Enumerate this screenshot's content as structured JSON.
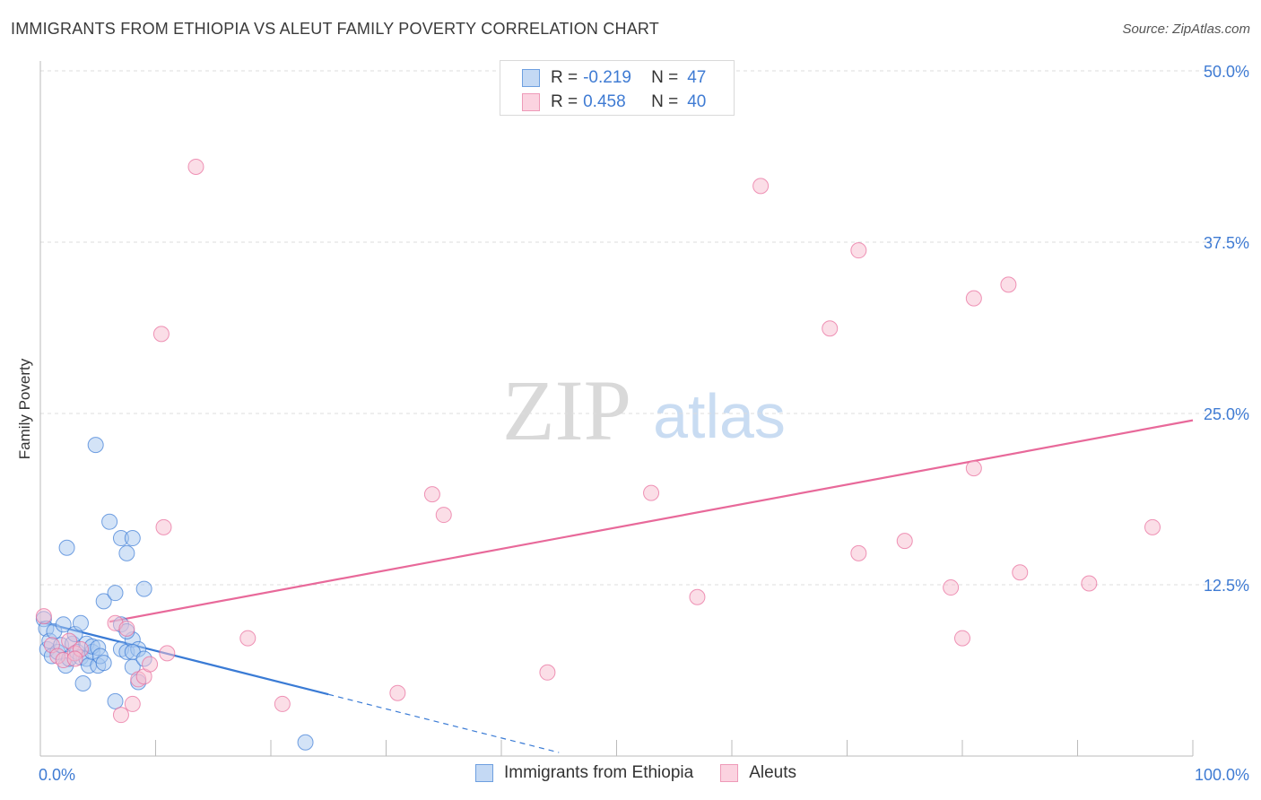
{
  "title": "IMMIGRANTS FROM ETHIOPIA VS ALEUT FAMILY POVERTY CORRELATION CHART",
  "source": "Source: ZipAtlas.com",
  "watermark": {
    "zip": "ZIP",
    "atlas": "atlas"
  },
  "colors": {
    "blue_fill": "#a8c8f0",
    "blue_stroke": "#3a7bd5",
    "pink_fill": "#f7bdd0",
    "pink_stroke": "#e8699a",
    "tick_text": "#3f7bd3",
    "grid": "#dddddd"
  },
  "legend": {
    "r_label": "R =",
    "n_label": "N =",
    "series1": {
      "r": "-0.219",
      "n": "47"
    },
    "series2": {
      "r": "0.458",
      "n": "40"
    }
  },
  "chart_data": {
    "type": "scatter",
    "title": "IMMIGRANTS FROM ETHIOPIA VS ALEUT FAMILY POVERTY CORRELATION CHART",
    "xlabel": "",
    "ylabel": "Family Poverty",
    "xlim": [
      0,
      100
    ],
    "ylim": [
      0,
      50
    ],
    "x_tick_labels": [
      {
        "value": 0,
        "label": "0.0%"
      },
      {
        "value": 100,
        "label": "100.0%"
      }
    ],
    "y_tick_labels": [
      {
        "value": 12.5,
        "label": "12.5%"
      },
      {
        "value": 25.0,
        "label": "25.0%"
      },
      {
        "value": 37.5,
        "label": "37.5%"
      },
      {
        "value": 50.0,
        "label": "50.0%"
      }
    ],
    "series": [
      {
        "name": "Immigrants from Ethiopia",
        "r": -0.219,
        "n": 47,
        "trend": {
          "x0": 0,
          "y0": 9.8,
          "x1": 25,
          "y1": 4.5,
          "dash_to_x": 45
        },
        "points": [
          [
            0.3,
            10.0
          ],
          [
            0.5,
            9.3
          ],
          [
            0.6,
            7.8
          ],
          [
            0.8,
            8.4
          ],
          [
            1.0,
            7.3
          ],
          [
            1.2,
            9.1
          ],
          [
            1.5,
            7.6
          ],
          [
            1.8,
            8.1
          ],
          [
            2.0,
            9.6
          ],
          [
            2.2,
            6.6
          ],
          [
            2.5,
            7.1
          ],
          [
            2.8,
            8.2
          ],
          [
            3.0,
            8.9
          ],
          [
            3.2,
            7.6
          ],
          [
            3.5,
            9.7
          ],
          [
            3.5,
            7.2
          ],
          [
            3.7,
            5.3
          ],
          [
            4.0,
            7.1
          ],
          [
            4.0,
            8.2
          ],
          [
            4.2,
            6.6
          ],
          [
            4.5,
            7.6
          ],
          [
            4.5,
            8.0
          ],
          [
            5.0,
            6.6
          ],
          [
            5.0,
            7.9
          ],
          [
            5.2,
            7.3
          ],
          [
            5.5,
            6.8
          ],
          [
            4.8,
            22.7
          ],
          [
            6.0,
            17.1
          ],
          [
            7.0,
            15.9
          ],
          [
            8.0,
            15.9
          ],
          [
            2.3,
            15.2
          ],
          [
            7.5,
            14.8
          ],
          [
            5.5,
            11.3
          ],
          [
            6.5,
            11.9
          ],
          [
            9.0,
            12.2
          ],
          [
            7.0,
            7.8
          ],
          [
            7.5,
            7.6
          ],
          [
            7.0,
            9.6
          ],
          [
            8.0,
            8.5
          ],
          [
            7.5,
            9.1
          ],
          [
            8.5,
            7.8
          ],
          [
            8.0,
            7.6
          ],
          [
            8.0,
            6.5
          ],
          [
            9.0,
            7.1
          ],
          [
            8.5,
            5.4
          ],
          [
            6.5,
            4.0
          ],
          [
            23.0,
            1.0
          ]
        ]
      },
      {
        "name": "Aleuts",
        "r": 0.458,
        "n": 40,
        "trend": {
          "x0": 6,
          "y0": 9.8,
          "x1": 100,
          "y1": 24.5
        },
        "points": [
          [
            0.3,
            10.2
          ],
          [
            1.0,
            8.1
          ],
          [
            1.5,
            7.3
          ],
          [
            2.0,
            7.0
          ],
          [
            2.5,
            8.4
          ],
          [
            3.0,
            7.5
          ],
          [
            3.5,
            7.8
          ],
          [
            6.5,
            9.7
          ],
          [
            7.0,
            3.0
          ],
          [
            7.5,
            9.3
          ],
          [
            8.0,
            3.8
          ],
          [
            8.5,
            5.6
          ],
          [
            9.0,
            5.8
          ],
          [
            9.5,
            6.7
          ],
          [
            11.0,
            7.5
          ],
          [
            13.5,
            43.0
          ],
          [
            10.5,
            30.8
          ],
          [
            10.7,
            16.7
          ],
          [
            18.0,
            8.6
          ],
          [
            21.0,
            3.8
          ],
          [
            31.0,
            4.6
          ],
          [
            34.0,
            19.1
          ],
          [
            35.0,
            17.6
          ],
          [
            44.0,
            6.1
          ],
          [
            53.0,
            19.2
          ],
          [
            57.0,
            11.6
          ],
          [
            62.5,
            41.6
          ],
          [
            68.5,
            31.2
          ],
          [
            71.0,
            14.8
          ],
          [
            71.0,
            36.9
          ],
          [
            75.0,
            15.7
          ],
          [
            79.0,
            12.3
          ],
          [
            80.0,
            8.6
          ],
          [
            81.0,
            21.0
          ],
          [
            81.0,
            33.4
          ],
          [
            84.0,
            34.4
          ],
          [
            85.0,
            13.4
          ],
          [
            91.0,
            12.6
          ],
          [
            96.5,
            16.7
          ],
          [
            3.0,
            7.1
          ]
        ]
      }
    ]
  }
}
